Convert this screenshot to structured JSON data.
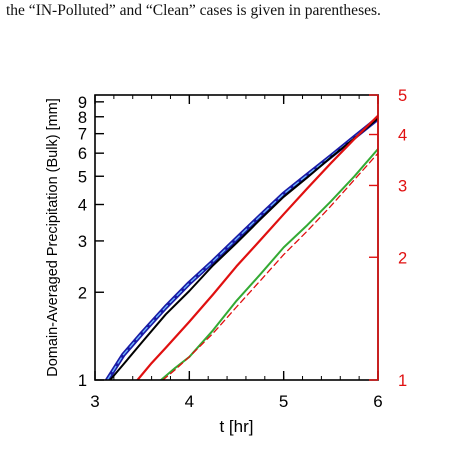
{
  "caption": "the “IN-Polluted” and “Clean” cases is given in parentheses.",
  "chart_data": {
    "type": "line",
    "xlabel": "t [hr]",
    "ylabel_left": "Domain-Averaged Precipitation (Bulk) [mm]",
    "ylabel_right": "",
    "x_ticks": [
      3,
      4,
      5,
      6
    ],
    "xlim": [
      3,
      6
    ],
    "ylim_left": [
      1,
      9.5
    ],
    "ylim_right": [
      1,
      5
    ],
    "y_scale": "log",
    "y_ticks_left": [
      1,
      2,
      3,
      4,
      5,
      6,
      7,
      8,
      9
    ],
    "y_ticks_right": [
      1,
      2,
      3,
      4,
      5
    ],
    "grid": false,
    "series": [
      {
        "axis": "left",
        "color": "#1a1aa6",
        "style": "solid",
        "width": 4.5,
        "x": [
          3.13,
          3.3,
          3.5,
          3.75,
          4.0,
          4.25,
          4.5,
          4.75,
          5.0,
          5.25,
          5.5,
          5.75,
          6.0
        ],
        "y": [
          1.0,
          1.22,
          1.45,
          1.78,
          2.15,
          2.55,
          3.05,
          3.65,
          4.35,
          5.05,
          5.85,
          6.8,
          7.9
        ]
      },
      {
        "axis": "left",
        "color": "#6fb8ff",
        "style": "dashed",
        "width": 1.3,
        "x": [
          3.13,
          3.3,
          3.5,
          3.75,
          4.0,
          4.25,
          4.5,
          4.75,
          5.0,
          5.25,
          5.5,
          5.75,
          6.0
        ],
        "y": [
          1.0,
          1.22,
          1.45,
          1.78,
          2.15,
          2.55,
          3.05,
          3.65,
          4.35,
          5.05,
          5.85,
          6.8,
          7.9
        ]
      },
      {
        "axis": "left",
        "color": "#000000",
        "style": "solid",
        "width": 2,
        "x": [
          3.16,
          3.3,
          3.5,
          3.75,
          4.0,
          4.25,
          4.5,
          4.75,
          5.0,
          5.25,
          5.5,
          5.75,
          6.0
        ],
        "y": [
          1.0,
          1.13,
          1.35,
          1.68,
          2.02,
          2.47,
          2.95,
          3.55,
          4.25,
          4.95,
          5.8,
          6.75,
          7.9
        ]
      },
      {
        "axis": "right",
        "color": "#e01010",
        "style": "solid",
        "width": 2.2,
        "x": [
          3.45,
          3.6,
          3.75,
          4.0,
          4.25,
          4.5,
          4.75,
          5.0,
          5.25,
          5.5,
          5.75,
          6.0
        ],
        "y": [
          1.0,
          1.1,
          1.2,
          1.39,
          1.62,
          1.9,
          2.2,
          2.55,
          2.95,
          3.4,
          3.9,
          4.45
        ]
      },
      {
        "axis": "left",
        "color": "#33aa33",
        "style": "solid",
        "width": 2,
        "x": [
          3.7,
          3.85,
          4.0,
          4.25,
          4.5,
          4.75,
          5.0,
          5.25,
          5.5,
          5.75,
          6.0
        ],
        "y": [
          1.0,
          1.1,
          1.2,
          1.48,
          1.87,
          2.3,
          2.85,
          3.4,
          4.1,
          5.0,
          6.2
        ]
      },
      {
        "axis": "right",
        "color": "#e01010",
        "style": "dashed",
        "width": 1.3,
        "x": [
          3.72,
          3.85,
          4.0,
          4.25,
          4.5,
          4.75,
          5.0,
          5.25,
          5.5,
          5.75,
          6.0
        ],
        "y": [
          1.0,
          1.06,
          1.14,
          1.3,
          1.51,
          1.75,
          2.03,
          2.32,
          2.67,
          3.1,
          3.6
        ]
      }
    ]
  }
}
